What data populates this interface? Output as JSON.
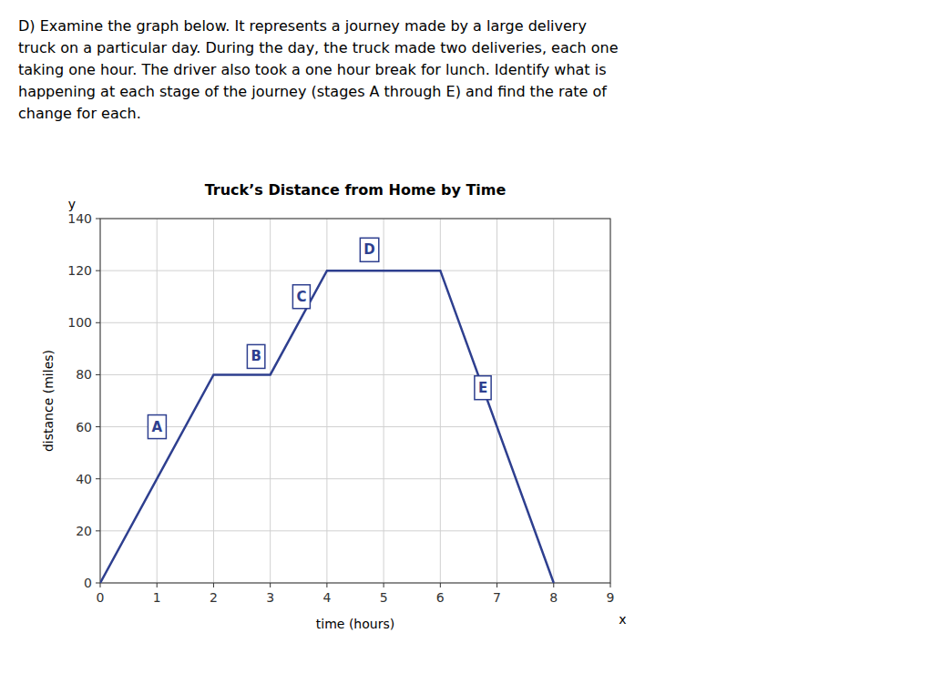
{
  "text_block": "D) Examine the graph below. It represents a journey made by a large delivery\ntruck on a particular day. During the day, the truck made two deliveries, each one\ntaking one hour. The driver also took a one hour break for lunch. Identify what is\nhappening at each stage of the journey (stages A through E) and find the rate of\nchange for each.",
  "chart_data": {
    "type": "line",
    "title": "Truck’s Distance from Home by Time",
    "x_label": "time (hours)",
    "y_label": "distance (miles)",
    "x": [
      0,
      2,
      3,
      4,
      5,
      6,
      8
    ],
    "values": [
      0,
      80,
      80,
      120,
      120,
      120,
      0
    ],
    "color": "#2e3f8f",
    "xlim": [
      0,
      9
    ],
    "ylim": [
      0,
      140
    ],
    "xticks": [
      0,
      1,
      2,
      3,
      4,
      5,
      6,
      7,
      8,
      9
    ],
    "yticks": [
      0,
      20,
      40,
      60,
      80,
      100,
      120,
      140
    ],
    "grid": true,
    "annotations": [
      {
        "text": "A",
        "x": 1.0,
        "y": 60
      },
      {
        "text": "B",
        "x": 2.75,
        "y": 87
      },
      {
        "text": "C",
        "x": 3.55,
        "y": 110
      },
      {
        "text": "D",
        "x": 4.75,
        "y": 128
      },
      {
        "text": "E",
        "x": 6.75,
        "y": 75
      },
      {
        "text": "y",
        "x": -0.5,
        "y": 144
      },
      {
        "text": "x",
        "x": 9.15,
        "y": -12
      }
    ]
  }
}
